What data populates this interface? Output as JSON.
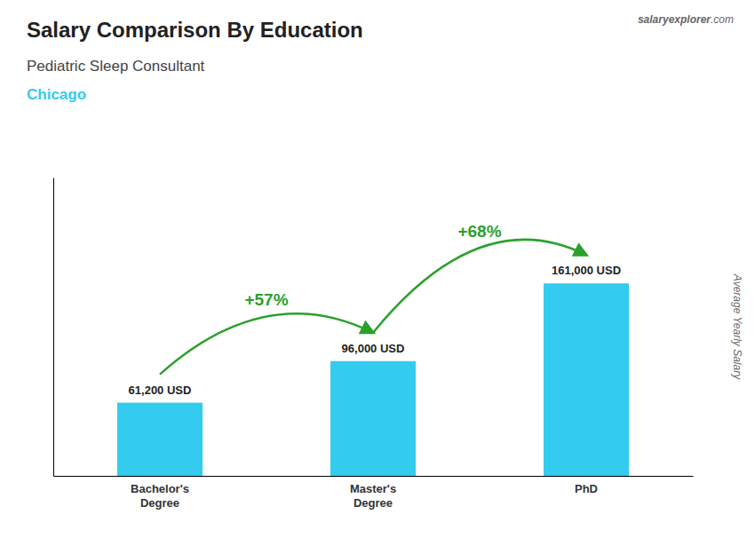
{
  "chart_data": {
    "type": "bar",
    "title": "Salary Comparison By Education",
    "subtitle": "Pediatric Sleep Consultant",
    "city": "Chicago",
    "ylabel": "Average Yearly Salary",
    "categories": [
      "Bachelor's\nDegree",
      "Master's\nDegree",
      "PhD"
    ],
    "values": [
      61200,
      96000,
      161000
    ],
    "value_labels": [
      "61,200 USD",
      "96,000 USD",
      "161,000 USD"
    ],
    "data_labels": true,
    "annotations": [
      "+57%",
      "+68%"
    ],
    "watermark": [
      "salary",
      "explorer",
      ".com"
    ],
    "color": "#33ccee",
    "ylim": [
      0,
      249550
    ],
    "tick_labels": "x",
    "grid": false
  }
}
